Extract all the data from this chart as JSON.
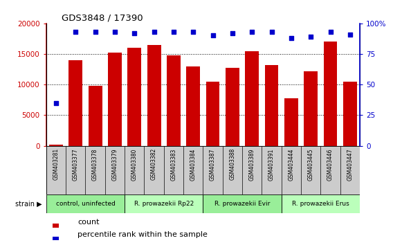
{
  "title": "GDS3848 / 17390",
  "samples": [
    "GSM403281",
    "GSM403377",
    "GSM403378",
    "GSM403379",
    "GSM403380",
    "GSM403382",
    "GSM403383",
    "GSM403384",
    "GSM403387",
    "GSM403388",
    "GSM403389",
    "GSM403391",
    "GSM403444",
    "GSM403445",
    "GSM403446",
    "GSM403447"
  ],
  "counts": [
    200,
    14000,
    9800,
    15200,
    16000,
    16400,
    14800,
    13000,
    10500,
    12700,
    15400,
    13200,
    7700,
    12200,
    17000,
    10500
  ],
  "percentiles": [
    35,
    93,
    93,
    93,
    92,
    93,
    93,
    93,
    90,
    92,
    93,
    93,
    88,
    89,
    93,
    91
  ],
  "groups": [
    {
      "label": "control, uninfected",
      "start": 0,
      "end": 4,
      "color": "#99ee99"
    },
    {
      "label": "R. prowazekii Rp22",
      "start": 4,
      "end": 8,
      "color": "#bbffbb"
    },
    {
      "label": "R. prowazekii Evir",
      "start": 8,
      "end": 12,
      "color": "#99ee99"
    },
    {
      "label": "R. prowazekii Erus",
      "start": 12,
      "end": 16,
      "color": "#bbffbb"
    }
  ],
  "bar_color": "#cc0000",
  "dot_color": "#0000cc",
  "left_axis_color": "#cc0000",
  "right_axis_color": "#0000cc",
  "ylim_left": [
    0,
    20000
  ],
  "ylim_right": [
    0,
    100
  ],
  "yticks_left": [
    0,
    5000,
    10000,
    15000,
    20000
  ],
  "yticks_right": [
    0,
    25,
    50,
    75,
    100
  ],
  "sample_box_color": "#dddddd",
  "legend_count_label": "count",
  "legend_percentile_label": "percentile rank within the sample"
}
